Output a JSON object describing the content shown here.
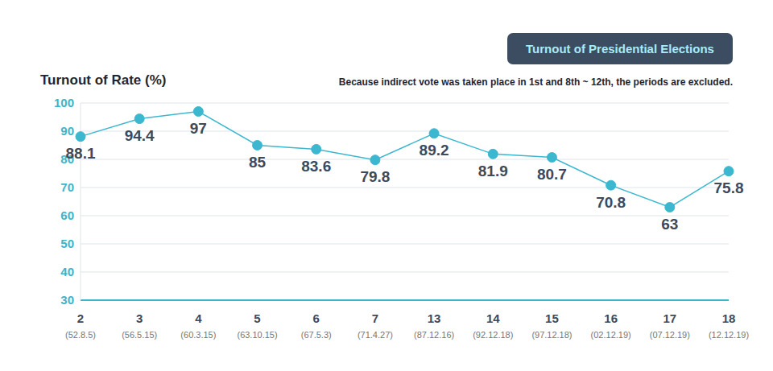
{
  "chart_data": {
    "type": "line",
    "title": "Turnout of Presidential Elections",
    "subtitle": "Because indirect vote was taken place in 1st and 8th ~ 12th, the periods are excluded.",
    "y_label": "Turnout of Rate (%)",
    "categories": [
      "2",
      "3",
      "4",
      "5",
      "6",
      "7",
      "13",
      "14",
      "15",
      "16",
      "17",
      "18"
    ],
    "category_dates": [
      "(52.8.5)",
      "(56.5.15)",
      "(60.3.15)",
      "(63.10.15)",
      "(67.5.3)",
      "(71.4.27)",
      "(87.12.16)",
      "(92.12.18)",
      "(97.12.18)",
      "(02.12.19)",
      "(07.12.19)",
      "(12.12.19)"
    ],
    "values": [
      88.1,
      94.4,
      97,
      85,
      83.6,
      79.8,
      89.2,
      81.9,
      80.7,
      70.8,
      63,
      75.8
    ],
    "color": "#3bb8cf",
    "marker": "circle",
    "ylim": [
      30,
      100
    ],
    "yticks": [
      30,
      40,
      50,
      60,
      70,
      80,
      90,
      100
    ],
    "grid": true,
    "data_labels": true
  }
}
